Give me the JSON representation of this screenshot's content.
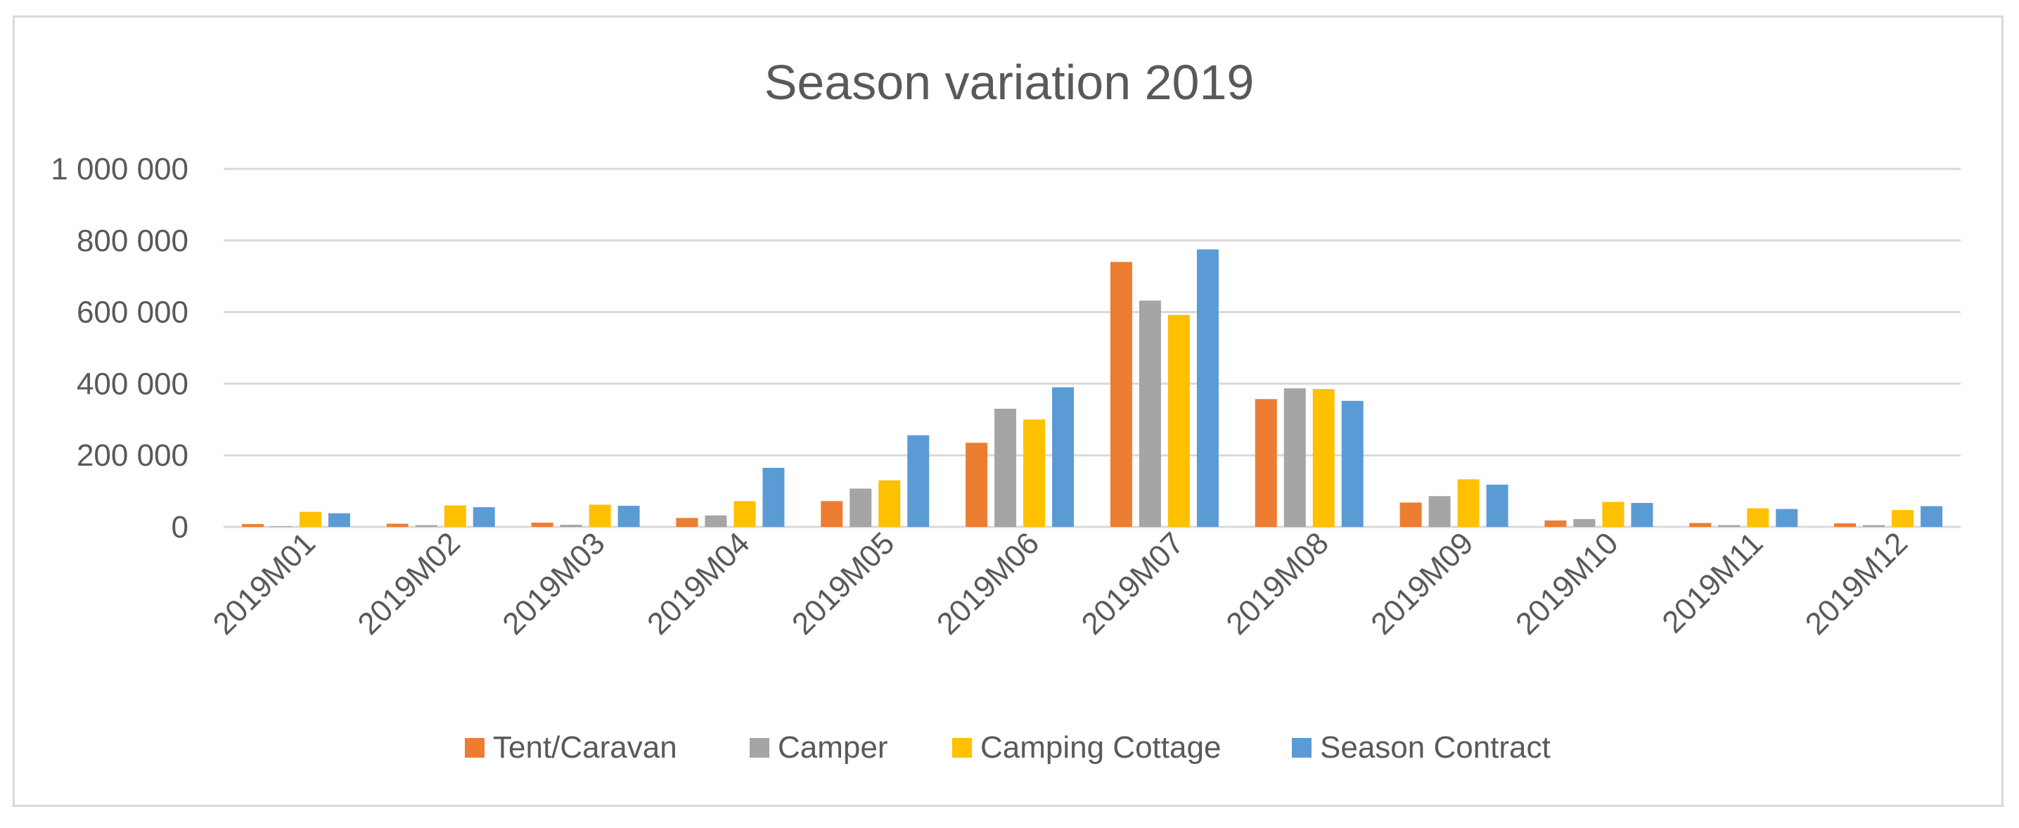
{
  "chart_data": {
    "type": "bar",
    "title": "Season variation 2019",
    "xlabel": "",
    "ylabel": "",
    "ylim": [
      0,
      1000000
    ],
    "yticks": [
      0,
      200000,
      400000,
      600000,
      800000,
      1000000
    ],
    "ytick_labels": [
      "0",
      "200 000",
      "400 000",
      "600 000",
      "800 000",
      "1 000 000"
    ],
    "grid": true,
    "legend_position": "bottom",
    "categories": [
      "2019M01",
      "2019M02",
      "2019M03",
      "2019M04",
      "2019M05",
      "2019M06",
      "2019M07",
      "2019M08",
      "2019M09",
      "2019M10",
      "2019M11",
      "2019M12"
    ],
    "series": [
      {
        "name": "Tent/Caravan",
        "color": "#ED7D31",
        "values": [
          8000,
          9000,
          12000,
          25000,
          72000,
          235000,
          740000,
          357000,
          68000,
          18000,
          11000,
          10000
        ]
      },
      {
        "name": "Camper",
        "color": "#A5A5A5",
        "values": [
          2000,
          5000,
          6000,
          32000,
          107000,
          330000,
          632000,
          387000,
          86000,
          22000,
          5000,
          5000
        ]
      },
      {
        "name": "Camping Cottage",
        "color": "#FFC000",
        "values": [
          42000,
          60000,
          62000,
          72000,
          130000,
          300000,
          592000,
          385000,
          133000,
          70000,
          52000,
          47000
        ]
      },
      {
        "name": "Season Contract",
        "color": "#5B9BD5",
        "values": [
          38000,
          55000,
          59000,
          165000,
          256000,
          390000,
          775000,
          352000,
          118000,
          67000,
          50000,
          58000
        ]
      }
    ]
  }
}
